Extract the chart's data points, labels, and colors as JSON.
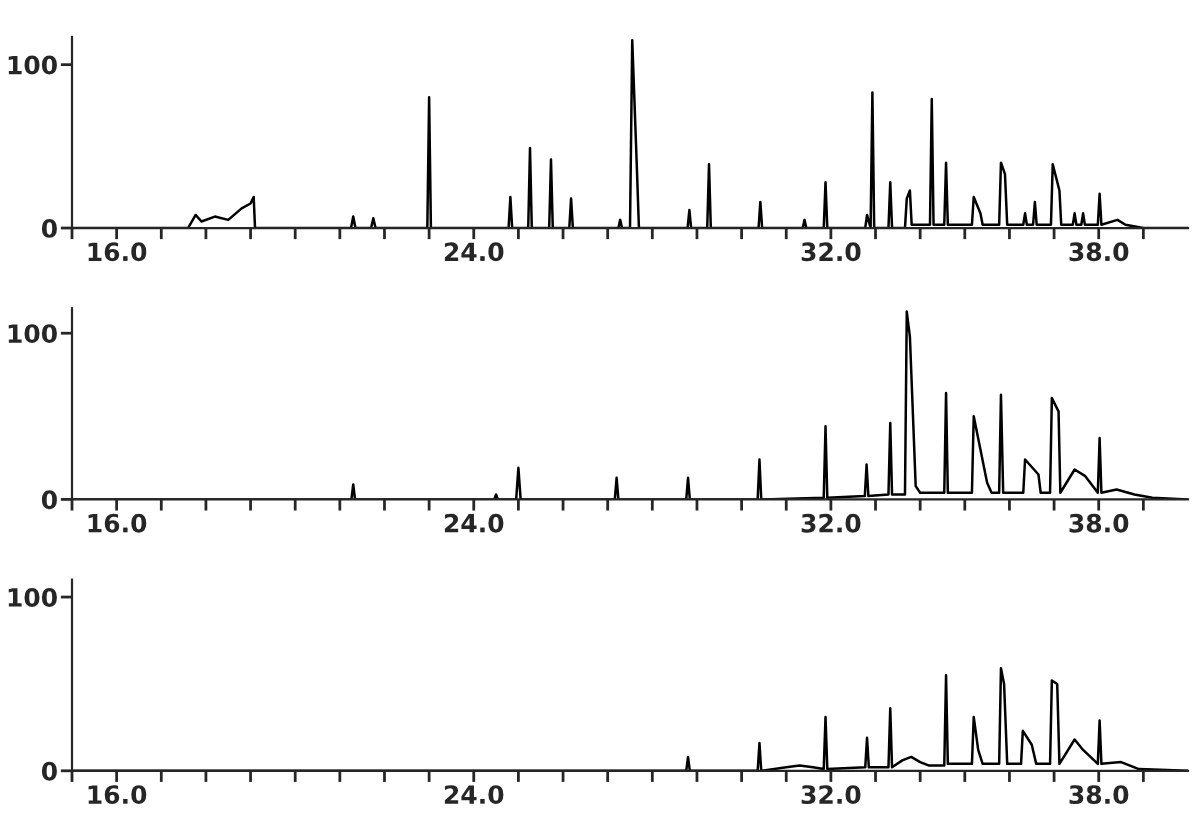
{
  "chart_data": [
    {
      "type": "line",
      "xlim": [
        15.0,
        40.0
      ],
      "ylim": [
        0,
        117
      ],
      "xticks": [
        {
          "value": 15,
          "label": null
        },
        {
          "value": 16,
          "label": "16.0"
        },
        {
          "value": 17,
          "label": null
        },
        {
          "value": 18,
          "label": null
        },
        {
          "value": 19,
          "label": null
        },
        {
          "value": 20,
          "label": null
        },
        {
          "value": 21,
          "label": null
        },
        {
          "value": 22,
          "label": null
        },
        {
          "value": 23,
          "label": null
        },
        {
          "value": 24,
          "label": "24.0"
        },
        {
          "value": 25,
          "label": null
        },
        {
          "value": 26,
          "label": null
        },
        {
          "value": 27,
          "label": null
        },
        {
          "value": 28,
          "label": null
        },
        {
          "value": 29,
          "label": null
        },
        {
          "value": 30,
          "label": null
        },
        {
          "value": 31,
          "label": null
        },
        {
          "value": 32,
          "label": "32.0"
        },
        {
          "value": 33,
          "label": null
        },
        {
          "value": 34,
          "label": null
        },
        {
          "value": 35,
          "label": null
        },
        {
          "value": 36,
          "label": null
        },
        {
          "value": 37,
          "label": null
        },
        {
          "value": 38,
          "label": "38.0"
        },
        {
          "value": 39,
          "label": null
        }
      ],
      "yticks": [
        0,
        100
      ],
      "series": [
        {
          "color": "#000000",
          "x": [
            15.0,
            17.6,
            17.77,
            17.9,
            18.2,
            18.5,
            18.8,
            19.0,
            19.07,
            19.1,
            21.25,
            21.3,
            21.35,
            21.7,
            21.75,
            21.8,
            22.96,
            23.0,
            23.04,
            24.78,
            24.82,
            24.86,
            25.22,
            25.26,
            25.3,
            25.69,
            25.73,
            25.77,
            26.14,
            26.18,
            26.22,
            27.24,
            27.28,
            27.32,
            27.5,
            27.55,
            27.65,
            27.7,
            28.79,
            28.83,
            28.87,
            29.23,
            29.27,
            29.31,
            30.38,
            30.42,
            30.46,
            31.37,
            31.41,
            31.45,
            31.84,
            31.88,
            31.92,
            32.77,
            32.81,
            32.89,
            32.93,
            32.97,
            33.29,
            33.33,
            33.37,
            33.66,
            33.7,
            33.77,
            33.81,
            34.22,
            34.26,
            34.3,
            34.54,
            34.58,
            34.62,
            35.16,
            35.2,
            35.35,
            35.4,
            35.77,
            35.81,
            35.9,
            35.95,
            36.31,
            36.35,
            36.39,
            36.53,
            36.57,
            36.61,
            36.93,
            36.97,
            37.12,
            37.16,
            37.42,
            37.46,
            37.5,
            37.61,
            37.65,
            37.69,
            37.98,
            38.02,
            38.06,
            38.42,
            38.6,
            39.0,
            40.0
          ],
          "values": [
            0,
            0,
            8,
            4,
            7,
            5,
            12,
            15,
            19,
            0,
            0,
            7,
            0,
            0,
            6,
            0,
            0,
            80,
            0,
            0,
            19,
            0,
            0,
            49,
            0,
            0,
            42,
            0,
            0,
            18,
            0,
            0,
            5,
            0,
            0,
            115,
            40,
            0,
            0,
            11,
            0,
            0,
            39,
            0,
            0,
            16,
            0,
            0,
            5,
            0,
            0,
            28,
            0,
            0,
            8,
            0,
            83,
            0,
            0,
            28,
            0,
            0,
            18,
            23,
            2,
            2,
            79,
            2,
            2,
            40,
            2,
            2,
            19,
            9,
            2,
            2,
            40,
            33,
            2,
            2,
            9,
            2,
            2,
            16,
            2,
            2,
            39,
            23,
            2,
            2,
            9,
            2,
            2,
            9,
            2,
            2,
            21,
            2,
            5,
            2,
            0,
            0
          ]
        }
      ]
    },
    {
      "type": "line",
      "xlim": [
        15.0,
        40.0
      ],
      "ylim": [
        0,
        115
      ],
      "xticks": [
        {
          "value": 15,
          "label": null
        },
        {
          "value": 16,
          "label": "16.0"
        },
        {
          "value": 17,
          "label": null
        },
        {
          "value": 18,
          "label": null
        },
        {
          "value": 19,
          "label": null
        },
        {
          "value": 20,
          "label": null
        },
        {
          "value": 21,
          "label": null
        },
        {
          "value": 22,
          "label": null
        },
        {
          "value": 23,
          "label": null
        },
        {
          "value": 24,
          "label": "24.0"
        },
        {
          "value": 25,
          "label": null
        },
        {
          "value": 26,
          "label": null
        },
        {
          "value": 27,
          "label": null
        },
        {
          "value": 28,
          "label": null
        },
        {
          "value": 29,
          "label": null
        },
        {
          "value": 30,
          "label": null
        },
        {
          "value": 31,
          "label": null
        },
        {
          "value": 32,
          "label": "32.0"
        },
        {
          "value": 33,
          "label": null
        },
        {
          "value": 34,
          "label": null
        },
        {
          "value": 35,
          "label": null
        },
        {
          "value": 36,
          "label": null
        },
        {
          "value": 37,
          "label": null
        },
        {
          "value": 38,
          "label": "38.0"
        },
        {
          "value": 39,
          "label": null
        }
      ],
      "yticks": [
        0,
        100
      ],
      "series": [
        {
          "color": "#000000",
          "x": [
            15.0,
            21.26,
            21.3,
            21.34,
            24.46,
            24.5,
            24.54,
            24.95,
            25.0,
            25.05,
            27.16,
            27.2,
            27.24,
            28.76,
            28.8,
            28.84,
            30.36,
            30.4,
            30.44,
            31.84,
            31.88,
            31.92,
            32.76,
            32.8,
            32.84,
            33.29,
            33.33,
            33.37,
            33.66,
            33.7,
            33.77,
            33.9,
            34.0,
            34.54,
            34.58,
            34.62,
            35.16,
            35.2,
            35.5,
            35.6,
            35.77,
            35.81,
            35.86,
            36.31,
            36.35,
            36.65,
            36.7,
            36.91,
            36.95,
            37.1,
            37.14,
            37.46,
            37.7,
            37.98,
            38.02,
            38.06,
            38.4,
            38.8,
            39.2,
            40.0
          ],
          "values": [
            0,
            0,
            9,
            0,
            0,
            3,
            0,
            0,
            19,
            0,
            0,
            13,
            0,
            0,
            13,
            0,
            0,
            24,
            0,
            1,
            44,
            1,
            2,
            21,
            2,
            3,
            46,
            3,
            3,
            113,
            98,
            8,
            4,
            4,
            64,
            4,
            4,
            50,
            10,
            4,
            4,
            63,
            4,
            4,
            24,
            15,
            4,
            4,
            61,
            53,
            4,
            18,
            14,
            4,
            37,
            4,
            6,
            3,
            1,
            0
          ]
        }
      ]
    },
    {
      "type": "line",
      "xlim": [
        15.0,
        40.0
      ],
      "ylim": [
        0,
        110
      ],
      "xticks": [
        {
          "value": 15,
          "label": null
        },
        {
          "value": 16,
          "label": "16.0"
        },
        {
          "value": 17,
          "label": null
        },
        {
          "value": 18,
          "label": null
        },
        {
          "value": 19,
          "label": null
        },
        {
          "value": 20,
          "label": null
        },
        {
          "value": 21,
          "label": null
        },
        {
          "value": 22,
          "label": null
        },
        {
          "value": 23,
          "label": null
        },
        {
          "value": 24,
          "label": "24.0"
        },
        {
          "value": 25,
          "label": null
        },
        {
          "value": 26,
          "label": null
        },
        {
          "value": 27,
          "label": null
        },
        {
          "value": 28,
          "label": null
        },
        {
          "value": 29,
          "label": null
        },
        {
          "value": 30,
          "label": null
        },
        {
          "value": 31,
          "label": null
        },
        {
          "value": 32,
          "label": "32.0"
        },
        {
          "value": 33,
          "label": null
        },
        {
          "value": 34,
          "label": null
        },
        {
          "value": 35,
          "label": null
        },
        {
          "value": 36,
          "label": null
        },
        {
          "value": 37,
          "label": null
        },
        {
          "value": 38,
          "label": "38.0"
        },
        {
          "value": 39,
          "label": null
        }
      ],
      "yticks": [
        0,
        100
      ],
      "series": [
        {
          "color": "#000000",
          "x": [
            15.0,
            28.76,
            28.8,
            28.84,
            30.36,
            30.4,
            30.44,
            31.0,
            31.3,
            31.6,
            31.84,
            31.88,
            31.92,
            32.77,
            32.81,
            32.85,
            33.29,
            33.33,
            33.37,
            33.6,
            33.8,
            34.0,
            34.2,
            34.54,
            34.58,
            34.62,
            35.16,
            35.2,
            35.3,
            35.4,
            35.77,
            35.81,
            35.88,
            35.95,
            36.26,
            36.3,
            36.5,
            36.6,
            36.91,
            36.95,
            37.07,
            37.12,
            37.46,
            37.65,
            37.98,
            38.02,
            38.06,
            38.5,
            38.9,
            40.0
          ],
          "values": [
            0,
            0,
            8,
            0,
            0,
            16,
            0,
            2,
            3,
            2,
            1,
            31,
            1,
            2,
            19,
            2,
            2,
            36,
            2,
            6,
            8,
            5,
            3,
            3,
            55,
            4,
            4,
            31,
            12,
            4,
            4,
            59,
            50,
            4,
            4,
            23,
            15,
            4,
            4,
            52,
            50,
            4,
            18,
            12,
            4,
            29,
            4,
            5,
            1,
            0
          ]
        }
      ]
    }
  ]
}
